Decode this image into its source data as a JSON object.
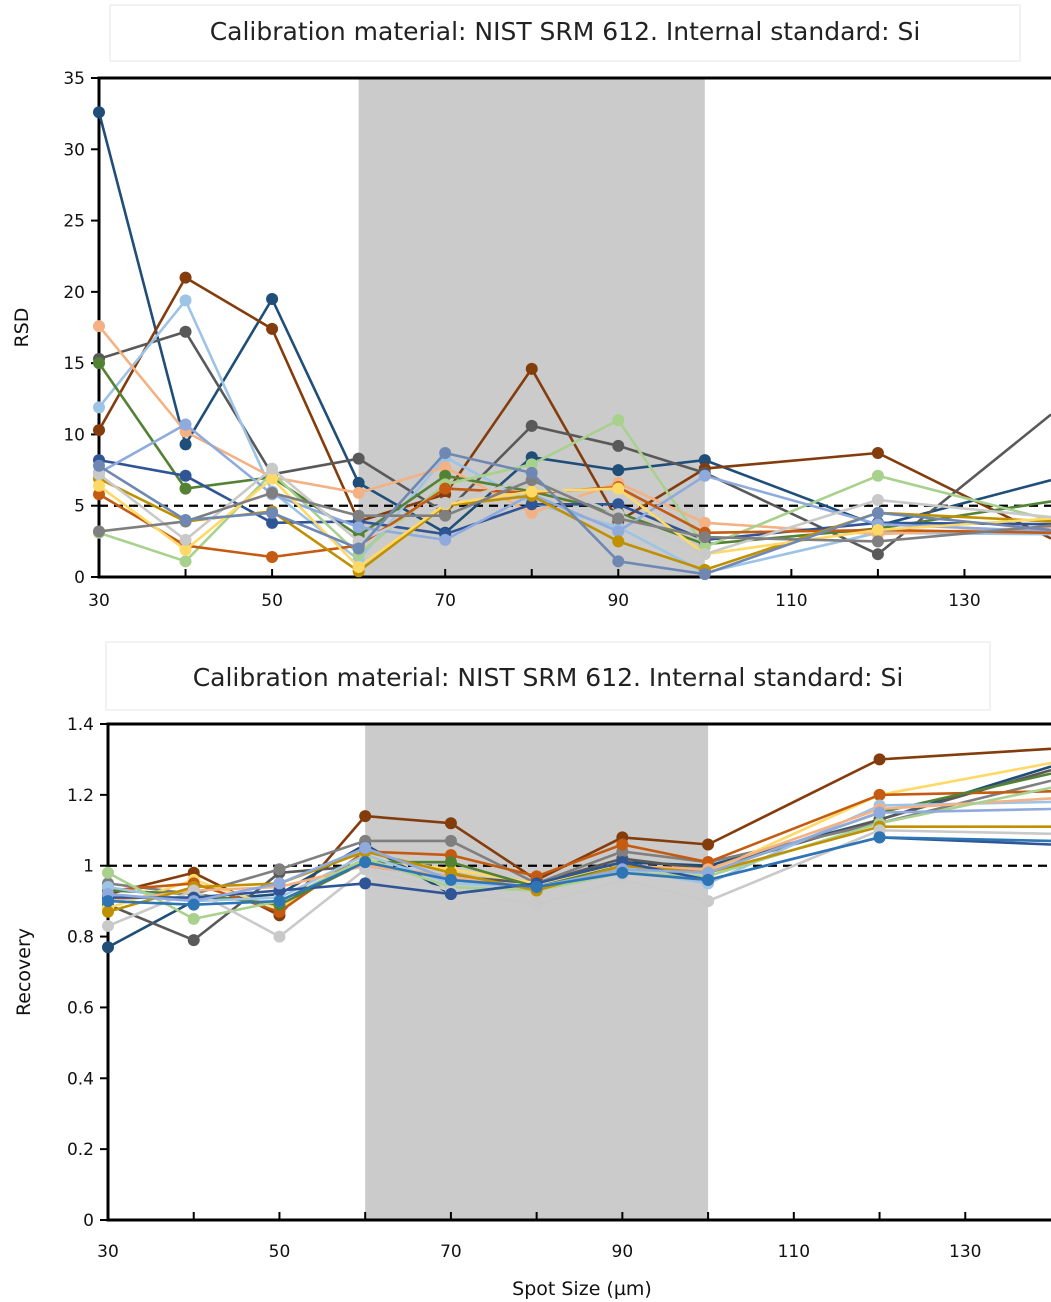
{
  "chart_data": [
    {
      "type": "line",
      "title": "Calibration material: NIST SRM 612. Internal standard: Si",
      "xlabel": "",
      "ylabel": "RSD",
      "xlim": [
        30,
        140
      ],
      "ylim": [
        0,
        35
      ],
      "x_ticks": [
        30,
        50,
        70,
        90,
        110,
        130
      ],
      "y_ticks": [
        0,
        5,
        10,
        15,
        20,
        25,
        30,
        35
      ],
      "shaded_region": [
        60,
        100
      ],
      "shaded_color": "#cbcbcb",
      "reference_line": 5,
      "grid": false,
      "x": [
        30,
        40,
        50,
        60,
        70,
        80,
        90,
        100,
        120,
        140
      ],
      "series": [
        {
          "color": "#1f4e79",
          "values": [
            32.6,
            9.3,
            19.5,
            6.6,
            3.1,
            8.4,
            7.5,
            8.2,
            3.6,
            6.8
          ]
        },
        {
          "color": "#843c0c",
          "values": [
            10.3,
            21.0,
            17.4,
            3.9,
            5.8,
            14.6,
            3.9,
            7.6,
            8.7,
            2.7
          ]
        },
        {
          "color": "#595959",
          "values": [
            15.3,
            17.2,
            7.2,
            8.3,
            4.5,
            10.6,
            9.2,
            7.3,
            1.6,
            11.4
          ]
        },
        {
          "color": "#9dc3e6",
          "values": [
            11.9,
            19.4,
            6.0,
            1.2,
            8.4,
            5.2,
            3.5,
            0.3,
            3.1,
            3.0
          ]
        },
        {
          "color": "#f4b183",
          "values": [
            17.6,
            10.2,
            7.0,
            5.9,
            7.7,
            4.5,
            6.6,
            3.8,
            3.0,
            3.5
          ]
        },
        {
          "color": "#548235",
          "values": [
            15.0,
            6.2,
            7.0,
            2.9,
            7.1,
            6.0,
            4.5,
            2.3,
            3.4,
            5.3
          ]
        },
        {
          "color": "#2f5597",
          "values": [
            8.2,
            7.1,
            3.8,
            3.9,
            3.0,
            5.1,
            5.1,
            2.6,
            3.8,
            3.7
          ]
        },
        {
          "color": "#a9d18e",
          "values": [
            3.1,
            1.1,
            7.3,
            1.6,
            6.5,
            7.9,
            11.0,
            2.1,
            7.1,
            4.0
          ]
        },
        {
          "color": "#8faadc",
          "values": [
            7.3,
            10.7,
            5.8,
            3.5,
            2.6,
            5.8,
            3.2,
            7.1,
            3.7,
            3.2
          ]
        },
        {
          "color": "#c55a11",
          "values": [
            5.8,
            2.2,
            1.4,
            2.2,
            6.2,
            5.9,
            6.3,
            3.1,
            3.3,
            3.1
          ]
        },
        {
          "color": "#bf9000",
          "values": [
            6.9,
            3.9,
            4.6,
            0.4,
            5.0,
            5.7,
            2.5,
            0.5,
            4.5,
            3.9
          ]
        },
        {
          "color": "#ffd966",
          "values": [
            6.4,
            1.9,
            6.9,
            0.7,
            5.1,
            6.0,
            6.2,
            1.6,
            3.3,
            4.1
          ]
        },
        {
          "color": "#c9c9c9",
          "values": [
            7.2,
            2.6,
            7.6,
            2.5,
            5.2,
            6.9,
            4.4,
            1.6,
            5.4,
            4.2
          ]
        },
        {
          "color": "#7f7f7f",
          "values": [
            3.2,
            3.9,
            5.9,
            4.3,
            4.3,
            6.8,
            4.1,
            2.8,
            2.5,
            3.6
          ]
        },
        {
          "color": "#6f88b3",
          "values": [
            7.8,
            4.0,
            4.5,
            2.0,
            8.7,
            7.3,
            1.1,
            0.2,
            4.5,
            3.3
          ]
        }
      ]
    },
    {
      "type": "line",
      "title": "Calibration material: NIST SRM 612. Internal standard: Si",
      "xlabel": "Spot Size (µm)",
      "ylabel": "Recovery",
      "xlim": [
        30,
        140
      ],
      "ylim": [
        0,
        1.4
      ],
      "x_ticks": [
        30,
        50,
        70,
        90,
        110,
        130
      ],
      "y_ticks": [
        0,
        0.2,
        0.4,
        0.6,
        0.8,
        1,
        1.2,
        1.4
      ],
      "shaded_region": [
        60,
        100
      ],
      "shaded_color": "#cbcbcb",
      "reference_line": 1,
      "grid": false,
      "x": [
        30,
        40,
        50,
        60,
        70,
        80,
        90,
        100,
        120,
        140
      ],
      "series": [
        {
          "color": "#843c0c",
          "values": [
            0.92,
            0.98,
            0.86,
            1.14,
            1.12,
            0.96,
            1.08,
            1.06,
            1.3,
            1.33
          ]
        },
        {
          "color": "#1f4e79",
          "values": [
            0.77,
            0.9,
            0.92,
            1.06,
            0.92,
            0.95,
            1.01,
            1.0,
            1.13,
            1.28
          ]
        },
        {
          "color": "#595959",
          "values": [
            0.89,
            0.79,
            0.98,
            1.0,
            0.97,
            0.95,
            1.02,
            0.99,
            1.13,
            1.27
          ]
        },
        {
          "color": "#7f7f7f",
          "values": [
            0.95,
            0.92,
            0.99,
            1.07,
            1.07,
            0.95,
            1.04,
            1.01,
            1.12,
            1.24
          ]
        },
        {
          "color": "#ffd966",
          "values": [
            0.88,
            0.96,
            0.88,
            1.02,
            0.99,
            0.95,
            1.0,
            0.98,
            1.2,
            1.29
          ]
        },
        {
          "color": "#c55a11",
          "values": [
            0.93,
            0.95,
            0.87,
            1.04,
            1.03,
            0.97,
            1.06,
            1.01,
            1.2,
            1.21
          ]
        },
        {
          "color": "#548235",
          "values": [
            0.93,
            0.92,
            0.89,
            1.01,
            1.01,
            0.94,
            1.0,
            0.98,
            1.15,
            1.26
          ]
        },
        {
          "color": "#9dc3e6",
          "values": [
            0.94,
            0.9,
            0.91,
            1.03,
            0.95,
            0.94,
            0.99,
            0.95,
            1.17,
            1.18
          ]
        },
        {
          "color": "#f4b183",
          "values": [
            0.9,
            0.93,
            0.94,
            1.0,
            0.97,
            0.93,
            1.0,
            0.99,
            1.16,
            1.19
          ]
        },
        {
          "color": "#a9d18e",
          "values": [
            0.98,
            0.85,
            0.9,
            1.02,
            0.94,
            0.93,
            0.98,
            0.97,
            1.12,
            1.22
          ]
        },
        {
          "color": "#bf9000",
          "values": [
            0.87,
            0.94,
            0.95,
            1.04,
            0.98,
            0.93,
            1.0,
            0.98,
            1.11,
            1.11
          ]
        },
        {
          "color": "#c9c9c9",
          "values": [
            0.83,
            0.93,
            0.8,
            0.99,
            0.93,
            0.89,
            0.96,
            0.9,
            1.1,
            1.09
          ]
        },
        {
          "color": "#2f5597",
          "values": [
            0.91,
            0.91,
            0.93,
            0.95,
            0.92,
            0.95,
            1.01,
            0.96,
            1.08,
            1.06
          ]
        },
        {
          "color": "#8faadc",
          "values": [
            0.92,
            0.9,
            0.95,
            1.05,
            0.96,
            0.94,
            0.99,
            0.98,
            1.15,
            1.16
          ]
        },
        {
          "color": "#2e75b6",
          "values": [
            0.9,
            0.89,
            0.9,
            1.01,
            0.96,
            0.94,
            0.98,
            0.96,
            1.08,
            1.07
          ]
        }
      ]
    }
  ]
}
